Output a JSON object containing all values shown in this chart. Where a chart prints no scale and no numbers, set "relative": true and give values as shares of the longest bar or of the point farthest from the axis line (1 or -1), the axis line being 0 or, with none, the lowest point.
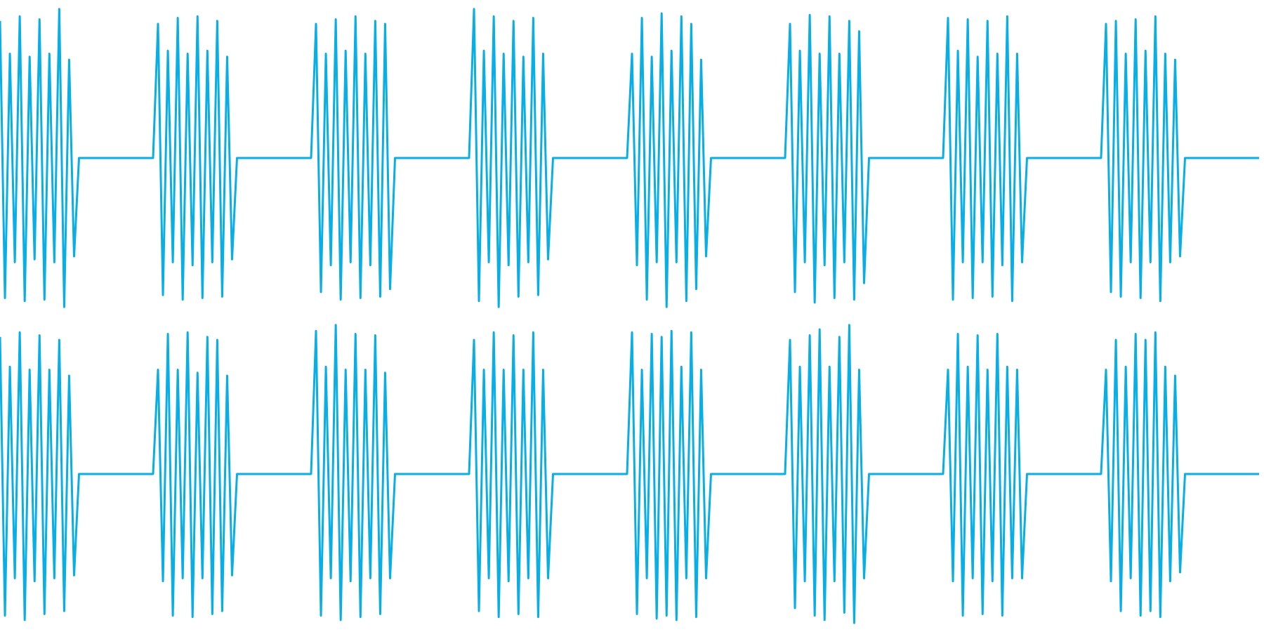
{
  "chart_data": [
    {
      "type": "line",
      "relative": true,
      "categories": [
        null,
        null,
        null,
        null,
        null,
        null,
        null,
        null,
        null,
        null,
        null,
        null,
        null,
        null,
        null,
        null,
        null,
        null,
        null,
        null,
        null,
        null,
        null,
        null,
        null,
        null,
        null,
        null,
        null,
        null,
        null,
        null,
        null,
        null,
        null,
        null,
        null,
        null,
        null,
        null,
        null,
        null,
        null,
        null,
        null,
        null,
        null,
        null,
        null,
        null,
        null,
        null,
        null,
        null,
        null,
        null,
        null,
        null,
        null,
        null,
        null,
        null,
        null,
        null,
        null,
        null,
        null,
        null,
        null,
        null,
        null,
        null,
        null,
        null,
        null,
        null,
        null,
        null,
        null,
        null,
        null,
        null,
        null,
        null,
        null,
        null,
        null,
        null,
        null,
        null,
        null,
        null,
        null,
        null,
        null,
        null,
        null,
        null,
        null,
        null,
        null,
        null,
        null,
        null,
        null,
        null,
        null,
        null,
        null,
        null,
        null,
        null,
        null,
        null,
        null,
        null,
        null,
        null,
        null,
        null,
        null,
        null,
        null,
        null,
        null,
        null,
        null,
        null,
        null,
        null,
        null,
        null,
        null,
        null,
        null,
        null,
        null,
        null,
        null,
        null,
        null,
        null,
        null,
        null,
        null,
        null,
        null,
        null,
        null,
        null,
        null,
        null,
        null,
        null,
        null,
        null,
        null,
        null,
        null,
        null,
        null,
        null,
        null,
        null,
        null,
        null,
        null,
        null,
        null,
        null,
        null,
        null,
        null,
        null,
        null,
        null,
        null,
        null,
        null,
        null,
        null,
        null,
        null,
        null,
        null,
        null,
        null,
        null,
        null,
        null,
        null,
        null,
        null,
        null,
        null,
        null,
        null,
        null,
        null,
        null,
        null,
        null,
        null,
        null,
        null,
        null,
        null,
        null,
        null,
        null,
        null,
        null,
        null,
        null,
        null,
        null,
        null,
        null,
        null,
        null,
        null,
        null,
        null,
        null,
        null,
        null,
        null,
        null,
        null,
        null,
        null,
        null,
        null,
        null,
        null,
        null,
        null,
        null,
        null,
        null,
        null,
        null,
        null,
        null,
        null,
        null,
        null,
        null,
        null,
        null,
        null,
        null,
        null,
        null,
        null,
        null
      ],
      "series": [
        {
          "color": "#08aee4",
          "values": [
            0.96,
            0.03,
            0.85,
            0.15,
            0.975,
            0.02,
            0.84,
            0.16,
            0.965,
            0.025,
            0.85,
            0.15,
            1,
            0,
            0.83,
            0.17,
            0.5,
            0.5,
            0.5,
            0.5,
            0.5,
            0.5,
            0.5,
            0.5,
            0.5,
            0.5,
            0.5,
            0.5,
            0.5,
            0.5,
            0.5,
            0.5,
            0.95,
            0.04,
            0.86,
            0.15,
            0.97,
            0.025,
            0.85,
            0.14,
            0.975,
            0.03,
            0.86,
            0.15,
            0.96,
            0.035,
            0.84,
            0.16,
            0.5,
            0.5,
            0.5,
            0.5,
            0.5,
            0.5,
            0.5,
            0.5,
            0.5,
            0.5,
            0.5,
            0.5,
            0.5,
            0.5,
            0.5,
            0.5,
            0.95,
            0.05,
            0.85,
            0.14,
            0.965,
            0.025,
            0.86,
            0.15,
            0.975,
            0.03,
            0.85,
            0.14,
            0.96,
            0.035,
            0.95,
            0.06,
            0.5,
            0.5,
            0.5,
            0.5,
            0.5,
            0.5,
            0.5,
            0.5,
            0.5,
            0.5,
            0.5,
            0.5,
            0.5,
            0.5,
            0.5,
            0.5,
            1,
            0.02,
            0.86,
            0.15,
            0.975,
            0,
            0.85,
            0.14,
            0.96,
            0.035,
            0.84,
            0.15,
            0.97,
            0.04,
            0.85,
            0.16,
            0.5,
            0.5,
            0.5,
            0.5,
            0.5,
            0.5,
            0.5,
            0.5,
            0.5,
            0.5,
            0.5,
            0.5,
            0.5,
            0.5,
            0.5,
            0.5,
            0.85,
            0.14,
            0.97,
            0.025,
            0.84,
            0.15,
            0.985,
            0,
            0.86,
            0.15,
            0.975,
            0.02,
            0.95,
            0.06,
            0.83,
            0.17,
            0.5,
            0.5,
            0.5,
            0.5,
            0.5,
            0.5,
            0.5,
            0.5,
            0.5,
            0.5,
            0.5,
            0.5,
            0.5,
            0.5,
            0.5,
            0.5,
            0.95,
            0.05,
            0.86,
            0.15,
            0.98,
            0.015,
            0.85,
            0.14,
            0.975,
            0.03,
            0.85,
            0.15,
            0.96,
            0.025,
            0.925,
            0.08,
            0.5,
            0.5,
            0.5,
            0.5,
            0.5,
            0.5,
            0.5,
            0.5,
            0.5,
            0.5,
            0.5,
            0.5,
            0.5,
            0.5,
            0.5,
            0.5,
            0.97,
            0.025,
            0.86,
            0.15,
            0.965,
            0.03,
            0.84,
            0.15,
            0.96,
            0.035,
            0.85,
            0.14,
            0.975,
            0.02,
            0.85,
            0.15,
            0.5,
            0.5,
            0.5,
            0.5,
            0.5,
            0.5,
            0.5,
            0.5,
            0.5,
            0.5,
            0.5,
            0.5,
            0.5,
            0.5,
            0.5,
            0.5,
            0.95,
            0.05,
            0.96,
            0.035,
            0.85,
            0.15,
            0.965,
            0.03,
            0.86,
            0.15,
            0.975,
            0.02,
            0.85,
            0.15,
            0.83,
            0.17,
            0.5,
            0.5,
            0.5,
            0.5,
            0.5,
            0.5,
            0.5,
            0.5,
            0.5,
            0.5,
            0.5,
            0.5,
            0.5,
            0.5,
            0.5,
            0.5
          ]
        }
      ]
    },
    {
      "type": "line",
      "relative": true,
      "categories": [
        null,
        null,
        null,
        null,
        null,
        null,
        null,
        null,
        null,
        null,
        null,
        null,
        null,
        null,
        null,
        null,
        null,
        null,
        null,
        null,
        null,
        null,
        null,
        null,
        null,
        null,
        null,
        null,
        null,
        null,
        null,
        null,
        null,
        null,
        null,
        null,
        null,
        null,
        null,
        null,
        null,
        null,
        null,
        null,
        null,
        null,
        null,
        null,
        null,
        null,
        null,
        null,
        null,
        null,
        null,
        null,
        null,
        null,
        null,
        null,
        null,
        null,
        null,
        null,
        null,
        null,
        null,
        null,
        null,
        null,
        null,
        null,
        null,
        null,
        null,
        null,
        null,
        null,
        null,
        null,
        null,
        null,
        null,
        null,
        null,
        null,
        null,
        null,
        null,
        null,
        null,
        null,
        null,
        null,
        null,
        null,
        null,
        null,
        null,
        null,
        null,
        null,
        null,
        null,
        null,
        null,
        null,
        null,
        null,
        null,
        null,
        null,
        null,
        null,
        null,
        null,
        null,
        null,
        null,
        null,
        null,
        null,
        null,
        null,
        null,
        null,
        null,
        null,
        null,
        null,
        null,
        null,
        null,
        null,
        null,
        null,
        null,
        null,
        null,
        null,
        null,
        null,
        null,
        null,
        null,
        null,
        null,
        null,
        null,
        null,
        null,
        null,
        null,
        null,
        null,
        null,
        null,
        null,
        null,
        null,
        null,
        null,
        null,
        null,
        null,
        null,
        null,
        null,
        null,
        null,
        null,
        null,
        null,
        null,
        null,
        null,
        null,
        null,
        null,
        null,
        null,
        null,
        null,
        null,
        null,
        null,
        null,
        null,
        null,
        null,
        null,
        null,
        null,
        null,
        null,
        null,
        null,
        null,
        null,
        null,
        null,
        null,
        null,
        null,
        null,
        null,
        null,
        null,
        null,
        null,
        null,
        null,
        null,
        null,
        null,
        null,
        null,
        null,
        null,
        null,
        null,
        null,
        null,
        null,
        null,
        null,
        null,
        null,
        null,
        null,
        null,
        null,
        null,
        null,
        null,
        null,
        null,
        null,
        null,
        null,
        null,
        null,
        null,
        null,
        null,
        null,
        null,
        null,
        null,
        null,
        null,
        null,
        null,
        null,
        null,
        null
      ],
      "series": [
        {
          "color": "#08aee4",
          "values": [
            0.96,
            0.025,
            0.86,
            0.15,
            0.975,
            0.01,
            0.85,
            0.14,
            0.965,
            0.03,
            0.85,
            0.15,
            0.95,
            0.04,
            0.83,
            0.16,
            0.5,
            0.5,
            0.5,
            0.5,
            0.5,
            0.5,
            0.5,
            0.5,
            0.5,
            0.5,
            0.5,
            0.5,
            0.5,
            0.5,
            0.5,
            0.5,
            0.85,
            0.14,
            0.97,
            0.025,
            0.85,
            0.15,
            0.975,
            0.02,
            0.84,
            0.15,
            0.96,
            0.03,
            0.95,
            0.04,
            0.83,
            0.16,
            0.5,
            0.5,
            0.5,
            0.5,
            0.5,
            0.5,
            0.5,
            0.5,
            0.5,
            0.5,
            0.5,
            0.5,
            0.5,
            0.5,
            0.5,
            0.5,
            0.98,
            0.025,
            0.86,
            0.15,
            1,
            0.01,
            0.85,
            0.14,
            0.97,
            0.02,
            0.85,
            0.15,
            0.965,
            0.03,
            0.84,
            0.15,
            0.5,
            0.5,
            0.5,
            0.5,
            0.5,
            0.5,
            0.5,
            0.5,
            0.5,
            0.5,
            0.5,
            0.5,
            0.5,
            0.5,
            0.5,
            0.5,
            0.95,
            0.04,
            0.85,
            0.15,
            0.975,
            0.02,
            0.85,
            0.14,
            0.965,
            0.03,
            0.85,
            0.15,
            0.975,
            0.02,
            0.85,
            0.15,
            0.5,
            0.5,
            0.5,
            0.5,
            0.5,
            0.5,
            0.5,
            0.5,
            0.5,
            0.5,
            0.5,
            0.5,
            0.5,
            0.5,
            0.5,
            0.5,
            0.975,
            0.03,
            0.85,
            0.15,
            0.97,
            0.015,
            0.96,
            0.025,
            0.98,
            0.01,
            0.86,
            0.15,
            0.975,
            0.02,
            0.85,
            0.15,
            0.5,
            0.5,
            0.5,
            0.5,
            0.5,
            0.5,
            0.5,
            0.5,
            0.5,
            0.5,
            0.5,
            0.5,
            0.5,
            0.5,
            0.5,
            0.5,
            0.95,
            0.05,
            0.86,
            0.14,
            0.965,
            0.025,
            0.985,
            0.01,
            0.86,
            0.14,
            0.96,
            0.035,
            1,
            0,
            0.85,
            0.15,
            0.5,
            0.5,
            0.5,
            0.5,
            0.5,
            0.5,
            0.5,
            0.5,
            0.5,
            0.5,
            0.5,
            0.5,
            0.5,
            0.5,
            0.5,
            0.5,
            0.85,
            0.14,
            0.97,
            0.025,
            0.86,
            0.15,
            0.965,
            0.03,
            0.85,
            0.14,
            0.97,
            0.025,
            0.86,
            0.15,
            0.85,
            0.15,
            0.5,
            0.5,
            0.5,
            0.5,
            0.5,
            0.5,
            0.5,
            0.5,
            0.5,
            0.5,
            0.5,
            0.5,
            0.5,
            0.5,
            0.5,
            0.5,
            0.85,
            0.14,
            0.95,
            0.04,
            0.86,
            0.15,
            0.97,
            0.025,
            0.95,
            0.04,
            0.975,
            0.02,
            0.86,
            0.14,
            0.83,
            0.17,
            0.5,
            0.5,
            0.5,
            0.5,
            0.5,
            0.5,
            0.5,
            0.5,
            0.5,
            0.5,
            0.5,
            0.5,
            0.5,
            0.5,
            0.5,
            0.5
          ]
        }
      ]
    }
  ]
}
